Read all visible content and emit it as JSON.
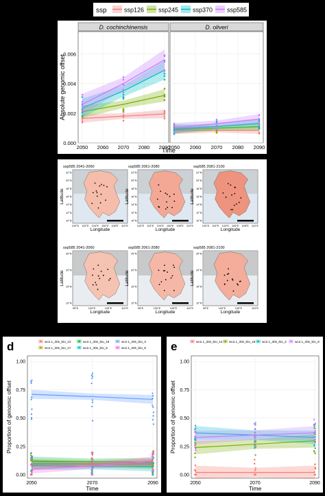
{
  "top": {
    "legend": {
      "title": "ssp",
      "items": [
        {
          "label": "ssp126",
          "color": "#f08080"
        },
        {
          "label": "ssp245",
          "color": "#7cae00"
        },
        {
          "label": "ssp370",
          "color": "#00bfc4"
        },
        {
          "label": "ssp585",
          "color": "#c77cff"
        }
      ]
    },
    "ylabel": "Absolute genomic offset",
    "xlabel": "Time"
  },
  "maps": {
    "row1": [
      "ssp585 2041-2060",
      "ssp585 2061-2080",
      "ssp585 2081-2100"
    ],
    "row2": [
      "ssp585 2041-2060",
      "ssp585 2061-2080",
      "ssp585 2081-2100"
    ],
    "row1_lat": [
      "22°N",
      "20°N",
      "18°N",
      "16°N",
      "14°N",
      "12°N",
      "10°N"
    ],
    "row1_lon": [
      "100°E",
      "102°E",
      "104°E",
      "106°E",
      "108°E",
      "110°E"
    ],
    "row2_lat": [
      "25°N",
      "20°N",
      "15°N",
      "10°N"
    ],
    "row2_lon": [
      "95°E",
      "100°E",
      "105°E",
      "110°E"
    ],
    "ylabel": "Latitude",
    "xlabel": "Longitude"
  },
  "panel_d": {
    "letter": "d",
    "legend": [
      {
        "label": "wc2.1_30s_bio_13",
        "color": "#f8766d"
      },
      {
        "label": "wc2.1_30s_bio_19",
        "color": "#00ba38"
      },
      {
        "label": "wc2.1_30s_bio_3",
        "color": "#619cff"
      },
      {
        "label": "wc2.1_30s_bio_17",
        "color": "#b79f00"
      },
      {
        "label": "wc2.1_30s_bio_5",
        "color": "#00bfc4"
      },
      {
        "label": "wc2.1_30s_bio_8",
        "color": "#f564e3"
      }
    ],
    "ylabel": "Proportion of genomic offset",
    "xlabel": "Time"
  },
  "panel_e": {
    "letter": "e",
    "legend": [
      {
        "label": "wc2.1_30s_bio_14",
        "color": "#f8766d"
      },
      {
        "label": "wc2.1_30s_bio_16",
        "color": "#7cae00"
      },
      {
        "label": "wc2.1_30s_bio_2",
        "color": "#00bfc4"
      },
      {
        "label": "wc2.1_30s_bio_8",
        "color": "#c77cff"
      }
    ],
    "ylabel": "Proportion of genomic offset",
    "xlabel": "Time"
  },
  "chart_data": [
    {
      "type": "line",
      "panel": "a",
      "facets": [
        "D. cochinchinensis",
        "D. oliveri"
      ],
      "x": [
        2050,
        2070,
        2090
      ],
      "xticks": [
        2050,
        2060,
        2070,
        2080,
        2090
      ],
      "yticks": [
        0.0,
        0.002,
        0.004,
        0.006
      ],
      "ylim": [
        0,
        0.0075
      ],
      "xlabel": "Time",
      "ylabel": "Absolute genomic offset",
      "legend_position": "top",
      "series": [
        {
          "name": "ssp126",
          "color": "#f08080",
          "facet": "D. cochinchinensis",
          "values": [
            0.00165,
            0.0018,
            0.00195
          ]
        },
        {
          "name": "ssp245",
          "color": "#7cae00",
          "facet": "D. cochinchinensis",
          "values": [
            0.0021,
            0.0026,
            0.0032
          ]
        },
        {
          "name": "ssp370",
          "color": "#00bfc4",
          "facet": "D. cochinchinensis",
          "values": [
            0.00235,
            0.0035,
            0.0049
          ]
        },
        {
          "name": "ssp585",
          "color": "#c77cff",
          "facet": "D. cochinchinensis",
          "values": [
            0.0026,
            0.004,
            0.0056
          ]
        },
        {
          "name": "ssp126",
          "color": "#f08080",
          "facet": "D. oliveri",
          "values": [
            0.00085,
            0.00085,
            0.00085
          ]
        },
        {
          "name": "ssp245",
          "color": "#7cae00",
          "facet": "D. oliveri",
          "values": [
            0.0009,
            0.001,
            0.0011
          ]
        },
        {
          "name": "ssp370",
          "color": "#00bfc4",
          "facet": "D. oliveri",
          "values": [
            0.00095,
            0.0011,
            0.0013
          ]
        },
        {
          "name": "ssp585",
          "color": "#c77cff",
          "facet": "D. oliveri",
          "values": [
            0.001,
            0.0013,
            0.0016
          ]
        }
      ]
    },
    {
      "type": "line",
      "panel": "d",
      "x": [
        2050,
        2070,
        2090
      ],
      "xticks": [
        2050,
        2070,
        2090
      ],
      "yticks": [
        0.0,
        0.25,
        0.5,
        0.75,
        1.0
      ],
      "ylim": [
        -0.03,
        1.05
      ],
      "xlabel": "Time",
      "ylabel": "Proportion of genomic offset",
      "legend_position": "top",
      "series": [
        {
          "name": "wc2.1_30s_bio_13",
          "color": "#f8766d",
          "values": [
            0.1,
            0.1,
            0.1
          ]
        },
        {
          "name": "wc2.1_30s_bio_19",
          "color": "#00ba38",
          "values": [
            0.12,
            0.115,
            0.11
          ]
        },
        {
          "name": "wc2.1_30s_bio_3",
          "color": "#619cff",
          "values": [
            0.71,
            0.69,
            0.665
          ]
        },
        {
          "name": "wc2.1_30s_bio_17",
          "color": "#b79f00",
          "values": [
            0.09,
            0.09,
            0.09
          ]
        },
        {
          "name": "wc2.1_30s_bio_5",
          "color": "#00bfc4",
          "values": [
            0.08,
            0.075,
            0.07
          ]
        },
        {
          "name": "wc2.1_30s_bio_8",
          "color": "#f564e3",
          "values": [
            0.05,
            0.08,
            0.12
          ]
        }
      ]
    },
    {
      "type": "line",
      "panel": "e",
      "x": [
        2050,
        2070,
        2090
      ],
      "xticks": [
        2050,
        2070,
        2090
      ],
      "yticks": [
        0.0,
        0.25,
        0.5,
        0.75,
        1.0
      ],
      "ylim": [
        -0.03,
        1.05
      ],
      "xlabel": "Time",
      "ylabel": "Proportion of genomic offset",
      "legend_position": "top",
      "series": [
        {
          "name": "wc2.1_30s_bio_14",
          "color": "#f8766d",
          "values": [
            0.02,
            0.02,
            0.02
          ]
        },
        {
          "name": "wc2.1_30s_bio_16",
          "color": "#7cae00",
          "values": [
            0.24,
            0.27,
            0.3
          ]
        },
        {
          "name": "wc2.1_30s_bio_2",
          "color": "#00bfc4",
          "values": [
            0.37,
            0.35,
            0.33
          ]
        },
        {
          "name": "wc2.1_30s_bio_8",
          "color": "#c77cff",
          "values": [
            0.33,
            0.35,
            0.37
          ]
        }
      ]
    }
  ]
}
